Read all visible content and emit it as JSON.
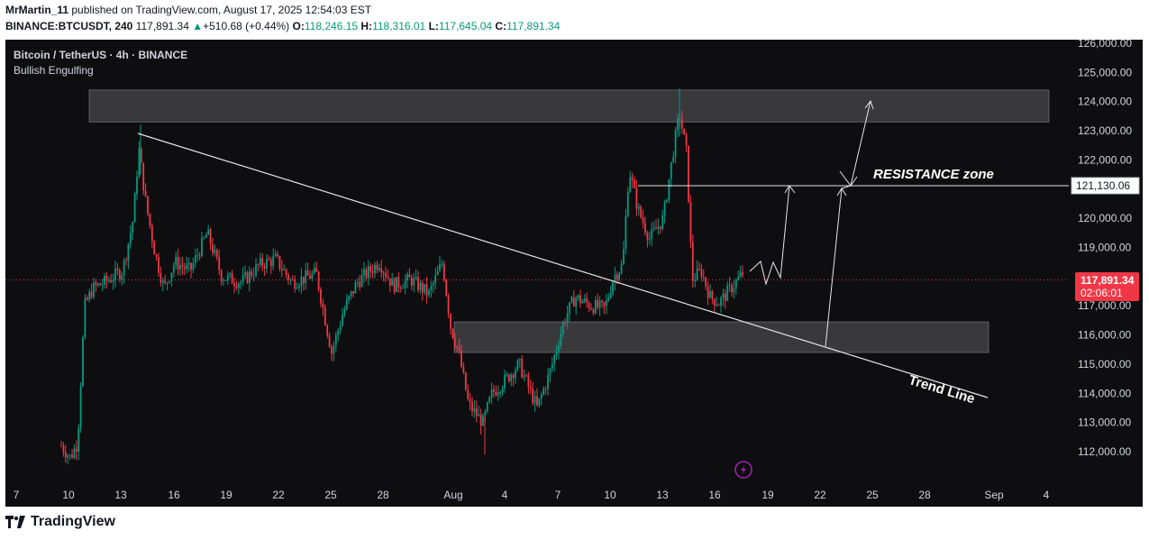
{
  "header": {
    "user": "MrMartin_11",
    "published_text": "published on TradingView.com, August 17, 2025 12:54:03 EST",
    "symbol": "BINANCE:BTCUSDT, 240",
    "last_price": "117,891.34",
    "change": "+510.68 (+0.44%)",
    "o_label": "O:",
    "o_value": "118,246.15",
    "h_label": "H:",
    "h_value": "118,316.01",
    "l_label": "L:",
    "l_value": "117,645.04",
    "c_label": "C:",
    "c_value": "117,891.34"
  },
  "chart": {
    "title": "Bitcoin / TetherUS · 4h · BINANCE",
    "indicator": "Bullish Engulfing",
    "resistance_label": "RESISTANCE zone",
    "trend_label": "Trend Line",
    "line_price_label": "121,130.06",
    "last_price_label": "117,891.34",
    "countdown": "02:06:01"
  },
  "footer": {
    "brand": "TradingView"
  },
  "colors": {
    "up": "#089981",
    "down": "#f23645",
    "bg": "#0e0e10",
    "price_badge": "#f23645"
  },
  "chart_data": {
    "type": "candlestick",
    "y_ticks": [
      "126,000.00",
      "125,000.00",
      "124,000.00",
      "123,000.00",
      "122,000.00",
      "120,000.00",
      "119,000.00",
      "118,000.00",
      "117,000.00",
      "116,000.00",
      "115,000.00",
      "114,000.00",
      "113,000.00",
      "112,000.00"
    ],
    "x_ticks": [
      "7",
      "10",
      "13",
      "16",
      "19",
      "22",
      "25",
      "28",
      "Aug",
      "4",
      "7",
      "10",
      "13",
      "16",
      "19",
      "22",
      "25",
      "28",
      "Sep",
      "4"
    ],
    "zones": [
      {
        "from": 123300,
        "to": 124400
      },
      {
        "from": 115400,
        "to": 116450
      }
    ],
    "resistance_level": 121130.06,
    "last_price": 117891.34
  }
}
